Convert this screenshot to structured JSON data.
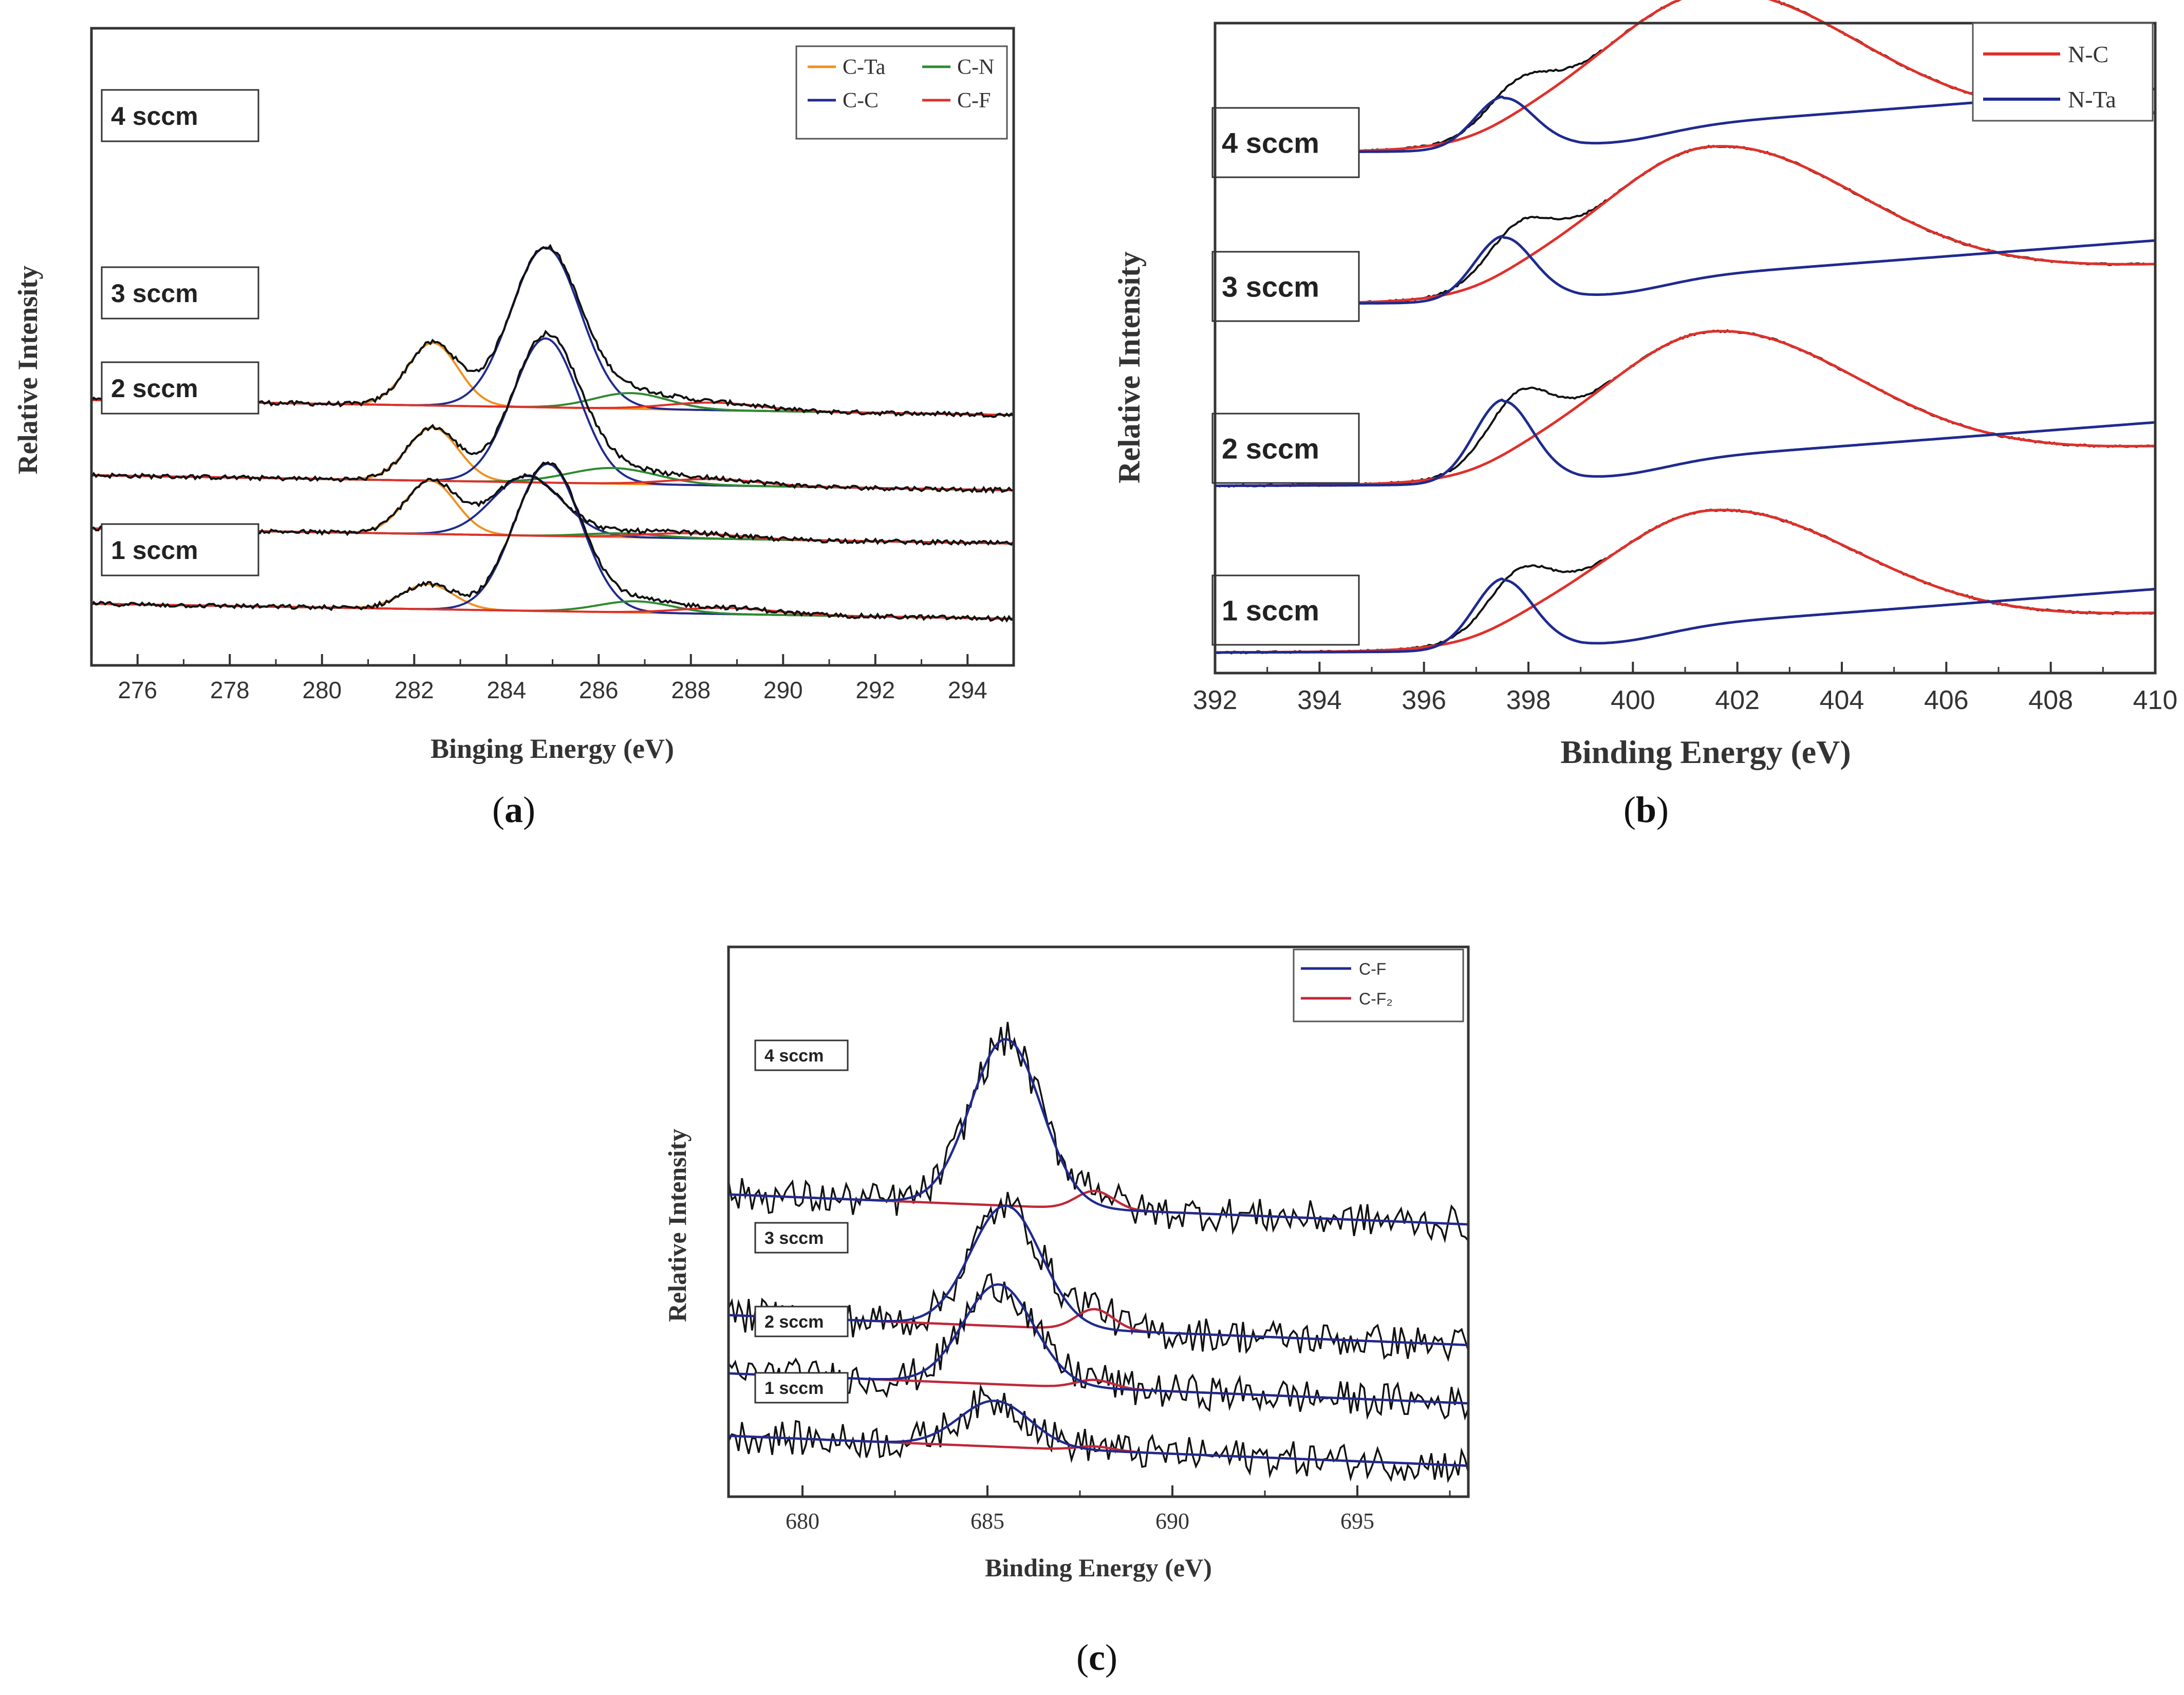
{
  "chart_data": [
    {
      "panel": "a",
      "type": "line",
      "panel_label_open": "(",
      "panel_label_letter": "a",
      "panel_label_close": ")",
      "xlabel": "Binging Energy (eV)",
      "ylabel": "Relative Intensity",
      "xlim": [
        275,
        295
      ],
      "xticks": [
        "276",
        "278",
        "280",
        "282",
        "284",
        "286",
        "288",
        "290",
        "292",
        "294"
      ],
      "legend": [
        {
          "label": "C-Ta",
          "color": "#f0901e"
        },
        {
          "label": "C-N",
          "color": "#2e8b2e"
        },
        {
          "label": "C-C",
          "color": "#1f2a8f"
        },
        {
          "label": "C-F",
          "color": "#e0302a"
        }
      ],
      "series": [
        {
          "name": "4 sccm",
          "offset": 3.6,
          "baseline_slope": -0.012,
          "components": [
            {
              "label": "C-Ta",
              "center": 282.4,
              "height": 1.0,
              "width": 0.55
            },
            {
              "label": "C-C",
              "center": 284.85,
              "height": 2.55,
              "width": 0.75
            },
            {
              "label": "C-N",
              "center": 286.7,
              "height": 0.25,
              "width": 0.8
            },
            {
              "label": "C-F",
              "center": 288.5,
              "height": 0.12,
              "width": 1.0
            }
          ]
        },
        {
          "name": "3 sccm",
          "offset": 2.4,
          "baseline_slope": -0.012,
          "components": [
            {
              "label": "C-Ta",
              "center": 282.4,
              "height": 0.85,
              "width": 0.55
            },
            {
              "label": "C-C",
              "center": 284.85,
              "height": 2.3,
              "width": 0.72
            },
            {
              "label": "C-N",
              "center": 286.3,
              "height": 0.25,
              "width": 0.95
            },
            {
              "label": "C-F",
              "center": 288.5,
              "height": 0.1,
              "width": 1.0
            }
          ]
        },
        {
          "name": "2 sccm",
          "offset": 1.55,
          "baseline_slope": -0.012,
          "components": [
            {
              "label": "C-Ta",
              "center": 282.35,
              "height": 0.85,
              "width": 0.55
            },
            {
              "label": "C-C",
              "center": 284.45,
              "height": 0.95,
              "width": 0.75
            },
            {
              "label": "C-N",
              "center": 286.5,
              "height": 0.06,
              "width": 0.8
            },
            {
              "label": "C-F",
              "center": 288.0,
              "height": 0.08,
              "width": 1.0
            }
          ]
        },
        {
          "name": "1 sccm",
          "offset": 0.35,
          "baseline_slope": -0.012,
          "components": [
            {
              "label": "C-Ta",
              "center": 282.3,
              "height": 0.4,
              "width": 0.55
            },
            {
              "label": "C-C",
              "center": 284.9,
              "height": 2.35,
              "width": 0.72
            },
            {
              "label": "C-N",
              "center": 286.8,
              "height": 0.18,
              "width": 0.8
            },
            {
              "label": "C-F",
              "center": 288.8,
              "height": 0.1,
              "width": 1.0
            }
          ]
        }
      ]
    },
    {
      "panel": "b",
      "type": "line",
      "panel_label_open": "(",
      "panel_label_letter": "b",
      "panel_label_close": ")",
      "xlabel": "Binding Energy (eV)",
      "ylabel": "Relative Intensity",
      "xlim": [
        392,
        410
      ],
      "xticks": [
        "392",
        "394",
        "396",
        "398",
        "400",
        "402",
        "404",
        "406",
        "408",
        "410"
      ],
      "legend": [
        {
          "label": "N-C",
          "color": "#e0302a"
        },
        {
          "label": "N-Ta",
          "color": "#1f2a8f"
        }
      ],
      "series": [
        {
          "name": "4 sccm",
          "offset": 3.3,
          "nc_height": 0.92,
          "nta_height": 0.3
        },
        {
          "name": "3 sccm",
          "offset": 2.3,
          "nc_height": 0.9,
          "nta_height": 0.38
        },
        {
          "name": "2 sccm",
          "offset": 1.1,
          "nc_height": 0.88,
          "nta_height": 0.5
        },
        {
          "name": "1 sccm",
          "offset": 0.0,
          "nc_height": 0.8,
          "nta_height": 0.42
        }
      ]
    },
    {
      "panel": "c",
      "type": "line",
      "panel_label_open": "(",
      "panel_label_letter": "c",
      "panel_label_close": ")",
      "xlabel": "Binding Energy (eV)",
      "ylabel": "Relative Intensity",
      "xlim": [
        678,
        698
      ],
      "xticks": [
        "680",
        "685",
        "690",
        "695"
      ],
      "legend": [
        {
          "label": "C-F",
          "color": "#1f2a8f"
        },
        {
          "label": "C-F₂",
          "color": "#c0283a"
        }
      ],
      "series": [
        {
          "name": "4 sccm",
          "offset": 3.15,
          "cf_center": 685.5,
          "cf_height": 2.0,
          "cf2_height": 0.22
        },
        {
          "name": "3 sccm",
          "offset": 1.7,
          "cf_center": 685.5,
          "cf_height": 1.45,
          "cf2_height": 0.25
        },
        {
          "name": "2 sccm",
          "offset": 1.0,
          "cf_center": 685.3,
          "cf_height": 1.2,
          "cf2_height": 0.1
        },
        {
          "name": "1 sccm",
          "offset": 0.25,
          "cf_center": 685.2,
          "cf_height": 0.55,
          "cf2_height": 0.05
        }
      ]
    }
  ]
}
